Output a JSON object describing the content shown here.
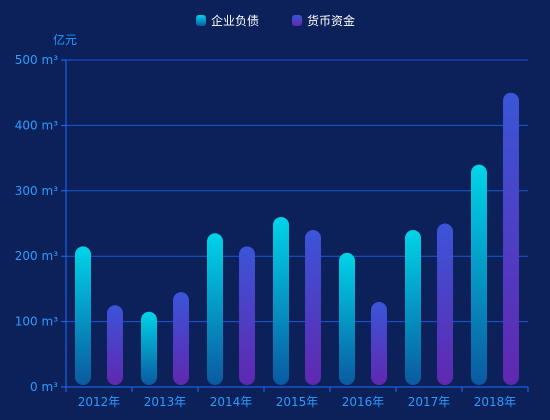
{
  "chart_data": {
    "type": "bar",
    "categories": [
      "2012年",
      "2013年",
      "2014年",
      "2015年",
      "2016年",
      "2017年",
      "2018年"
    ],
    "series": [
      {
        "name": "企业负债",
        "values": [
          215,
          115,
          235,
          260,
          205,
          240,
          340
        ],
        "color_top": "#00d4e8",
        "color_bottom": "#0a5aa0",
        "legend_color": "#18a8d8"
      },
      {
        "name": "货币资金",
        "values": [
          125,
          145,
          215,
          240,
          130,
          250,
          450
        ],
        "color_top": "#3b55d8",
        "color_bottom": "#6028b0",
        "legend_color": "#4838c8"
      }
    ],
    "y_ticks": [
      "0 m³",
      "100 m³",
      "200 m³",
      "300 m³",
      "400 m³",
      "500 m³"
    ],
    "ylim": [
      0,
      500
    ],
    "y_unit": "亿元",
    "grid": true,
    "legend": "top-center",
    "axis_color": "#1e6cff",
    "text_color": "#2d9cff"
  }
}
